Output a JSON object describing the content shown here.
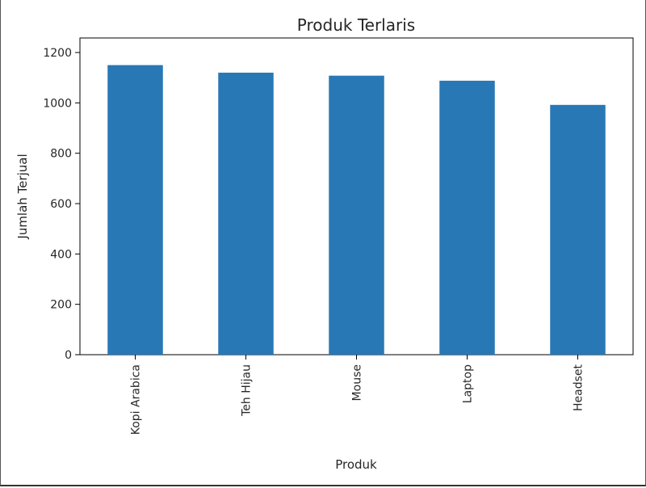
{
  "chart_data": {
    "type": "bar",
    "title": "Produk Terlaris",
    "xlabel": "Produk",
    "ylabel": "Jumlah Terjual",
    "categories": [
      "Kopi Arabica",
      "Teh Hijau",
      "Mouse",
      "Laptop",
      "Headset"
    ],
    "values": [
      1150,
      1120,
      1108,
      1088,
      992
    ],
    "ylim": [
      0,
      1200
    ],
    "yticks": [
      "0",
      "200",
      "400",
      "600",
      "800",
      "1000",
      "1200"
    ],
    "bar_color": "#2878b5",
    "grid": false,
    "legend": "none"
  }
}
